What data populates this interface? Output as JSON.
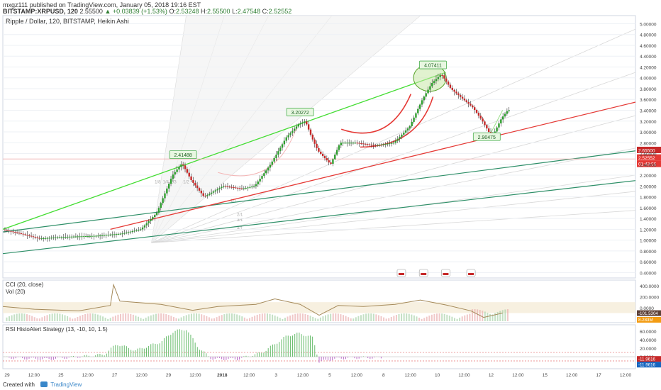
{
  "header": {
    "publisher_line": "mxgz111 published on TradingView.com, January 05, 2018 19:16 EST",
    "symbol_line": "BITSTAMP:XRPUSD, 120",
    "last": "2.55500",
    "change": "+0.03839 (+1.53%)",
    "o_label": "O:",
    "o": "2.53248",
    "h_label": "H:",
    "h": "2.55500",
    "l_label": "L:",
    "l": "2.47548",
    "c_label": "C:",
    "c": "2.52552"
  },
  "main_pane": {
    "legend": "Ripple / Dollar, 120, BITSTAMP, Heikin Ashi",
    "ticks": [
      "5.00000",
      "4.80000",
      "4.60000",
      "4.40000",
      "4.20000",
      "4.00000",
      "3.80000",
      "3.60000",
      "3.40000",
      "3.20000",
      "3.00000",
      "2.80000",
      "2.60000",
      "2.40000",
      "2.20000",
      "2.00000",
      "1.80000",
      "1.60000",
      "1.40000",
      "1.20000",
      "1.00000",
      "0.80000",
      "0.60000",
      "0.40000"
    ],
    "price_tags": {
      "price_a": "2.65500",
      "price_b": "2.52552",
      "countdown": "01:43:56"
    },
    "fan_labels": [
      "1/8",
      "1/4",
      "1/3",
      "1/2",
      "1/1",
      "2/1",
      "3/1",
      "4/1"
    ]
  },
  "cci_pane": {
    "legend_a": "CCI (20, close)",
    "legend_b": "Vol (20)",
    "ticks": [
      "400.0000",
      "200.0000",
      "0.0000",
      "-200.0000"
    ],
    "tag_cci": "-101.5304",
    "tag_vol": "8.283M"
  },
  "rsi_pane": {
    "legend": "RSI HistoAlert Strategy (13, -10, 10, 1.5)",
    "ticks": [
      "60.0000",
      "40.0000",
      "20.0000",
      "0.0000",
      "-20.0000"
    ],
    "tag_a": "-11.9616",
    "tag_b": "-11.9616"
  },
  "time_axis": [
    "29",
    "12:00",
    "25",
    "12:00",
    "27",
    "12:00",
    "29",
    "12:00",
    "2018",
    "12:00",
    "3",
    "12:00",
    "5",
    "12:00",
    "8",
    "12:00",
    "10",
    "12:00",
    "12",
    "12:00",
    "15",
    "12:00",
    "17",
    "12:00"
  ],
  "footer": {
    "created_with": "Created with",
    "brand": "TradingView"
  },
  "chart_data": {
    "type": "candlestick",
    "title": "Ripple / Dollar, 120, BITSTAMP, Heikin Ashi",
    "y_range": [
      0.3,
      5.15
    ],
    "ylabel": "",
    "annotated_points": [
      {
        "label": "2.41488",
        "value": 2.41488
      },
      {
        "label": "3.20272",
        "value": 3.20272
      },
      {
        "label": "4.07411",
        "value": 4.07411
      },
      {
        "label": "2.90475",
        "value": 2.90475
      }
    ],
    "price_path": [
      [
        0,
        1.2
      ],
      [
        0.03,
        1.12
      ],
      [
        0.06,
        1.03
      ],
      [
        0.1,
        1.06
      ],
      [
        0.15,
        1.08
      ],
      [
        0.19,
        1.12
      ],
      [
        0.22,
        1.2
      ],
      [
        0.245,
        1.5
      ],
      [
        0.27,
        2.2
      ],
      [
        0.285,
        2.42
      ],
      [
        0.3,
        2.1
      ],
      [
        0.32,
        1.8
      ],
      [
        0.35,
        2.0
      ],
      [
        0.38,
        1.95
      ],
      [
        0.4,
        2.0
      ],
      [
        0.425,
        2.4
      ],
      [
        0.45,
        2.9
      ],
      [
        0.47,
        3.15
      ],
      [
        0.48,
        3.2
      ],
      [
        0.49,
        2.9
      ],
      [
        0.5,
        2.65
      ],
      [
        0.52,
        2.4
      ],
      [
        0.535,
        2.8
      ],
      [
        0.56,
        2.8
      ],
      [
        0.59,
        2.75
      ],
      [
        0.62,
        2.8
      ],
      [
        0.645,
        3.1
      ],
      [
        0.665,
        3.6
      ],
      [
        0.68,
        3.9
      ],
      [
        0.695,
        4.07
      ],
      [
        0.71,
        3.8
      ],
      [
        0.73,
        3.6
      ],
      [
        0.745,
        3.45
      ],
      [
        0.76,
        3.2
      ],
      [
        0.775,
        2.9
      ],
      [
        0.79,
        3.25
      ],
      [
        0.8,
        3.4
      ]
    ],
    "cci_range": [
      -250,
      480
    ],
    "cci": [
      [
        0,
        20
      ],
      [
        0.05,
        -30
      ],
      [
        0.12,
        -60
      ],
      [
        0.17,
        40
      ],
      [
        0.175,
        420
      ],
      [
        0.185,
        120
      ],
      [
        0.25,
        60
      ],
      [
        0.3,
        -50
      ],
      [
        0.34,
        20
      ],
      [
        0.4,
        60
      ],
      [
        0.43,
        160
      ],
      [
        0.47,
        60
      ],
      [
        0.5,
        -140
      ],
      [
        0.53,
        40
      ],
      [
        0.57,
        20
      ],
      [
        0.62,
        60
      ],
      [
        0.66,
        140
      ],
      [
        0.7,
        50
      ],
      [
        0.74,
        -60
      ],
      [
        0.76,
        -180
      ],
      [
        0.79,
        -100
      ]
    ],
    "rsi_range": [
      -25,
      72
    ],
    "rsi_hist": [
      [
        0,
        -2
      ],
      [
        0.07,
        -6
      ],
      [
        0.16,
        5
      ],
      [
        0.18,
        30
      ],
      [
        0.21,
        15
      ],
      [
        0.25,
        35
      ],
      [
        0.27,
        60
      ],
      [
        0.29,
        65
      ],
      [
        0.31,
        20
      ],
      [
        0.33,
        -5
      ],
      [
        0.37,
        -6
      ],
      [
        0.41,
        10
      ],
      [
        0.43,
        30
      ],
      [
        0.45,
        50
      ],
      [
        0.47,
        55
      ],
      [
        0.49,
        45
      ],
      [
        0.5,
        -12
      ],
      [
        0.53,
        -4
      ],
      [
        0.57,
        -2
      ],
      [
        0.6,
        -3
      ]
    ]
  }
}
